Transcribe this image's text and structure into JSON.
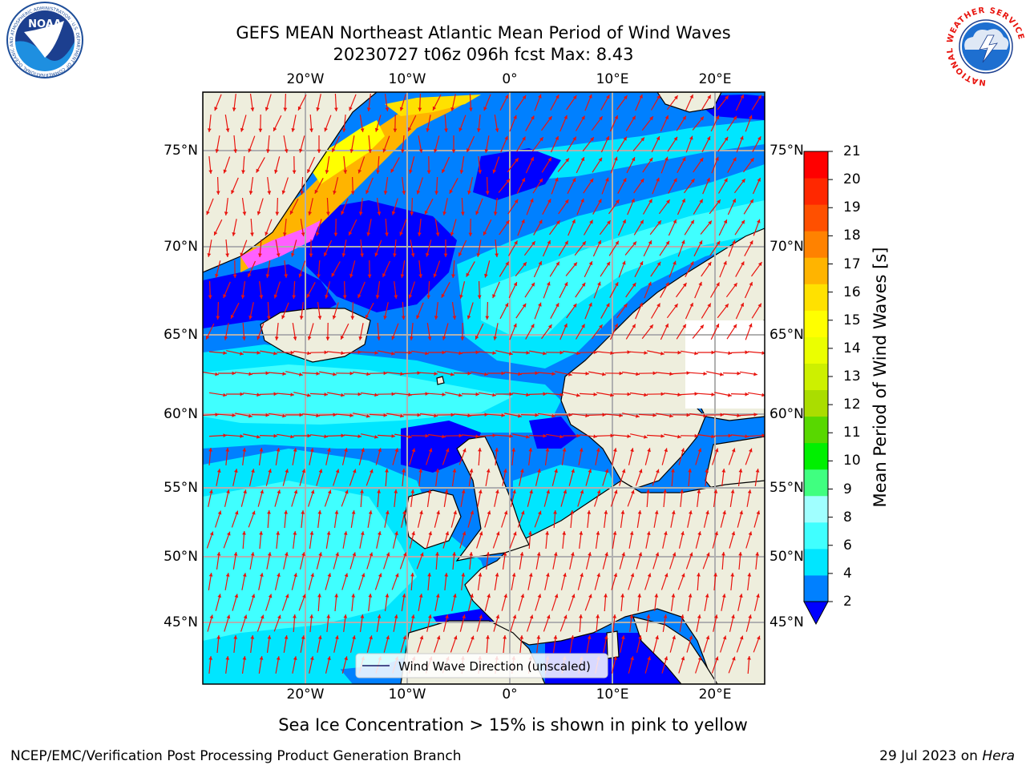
{
  "header": {
    "title_line1": "GEFS MEAN Northeast Atlantic Mean Period of Wind Waves",
    "title_line2": "20230727 t06z 096h fcst   Max: 8.43"
  },
  "logos": {
    "left": "NOAA",
    "left_ring_text": "NATIONAL OCEANIC AND ATMOSPHERIC ADMINISTRATION · U.S. DEPARTMENT OF COMMERCE",
    "right_ring_text": "NATIONAL WEATHER SERVICE"
  },
  "map": {
    "lon_labels": [
      "20°W",
      "10°W",
      "0°",
      "10°E",
      "20°E"
    ],
    "lat_labels": [
      "75°N",
      "70°N",
      "65°N",
      "60°N",
      "55°N",
      "50°N",
      "45°N"
    ],
    "legend_label": "Wind Wave Direction (unscaled)",
    "arrow_color": "#e8140e",
    "land_color": "#eeeedd"
  },
  "colorbar": {
    "label": "Mean Period of Wind Waves [s]",
    "ticks": [
      "21",
      "20",
      "19",
      "18",
      "17",
      "16",
      "15",
      "14",
      "13",
      "12",
      "11",
      "10",
      "9",
      "8",
      "6",
      "4",
      "2"
    ],
    "colors": [
      "#0000ff",
      "#0080ff",
      "#00e6ff",
      "#40ffff",
      "#a0ffff",
      "#40ff80",
      "#00f000",
      "#58d800",
      "#aadd00",
      "#cdf000",
      "#ebff00",
      "#ffff00",
      "#ffe100",
      "#ffb400",
      "#ff8200",
      "#ff5000",
      "#ff2800",
      "#ff0000"
    ]
  },
  "footer": {
    "note": "Sea Ice Concentration > 15% is shown in pink to yellow",
    "left": "NCEP/EMC/Verification Post Processing Product Generation Branch",
    "right_prefix": "29 Jul 2023 on ",
    "right_host": "Hera"
  }
}
